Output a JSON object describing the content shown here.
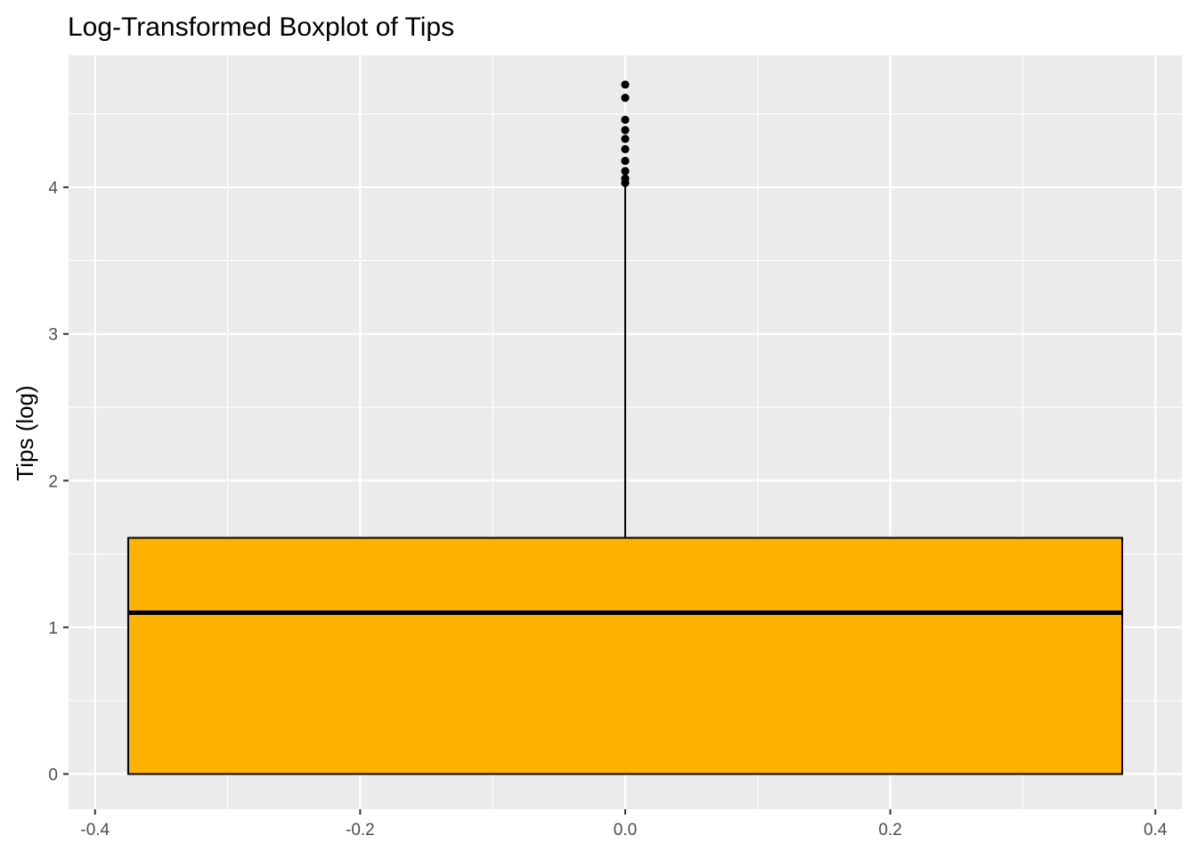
{
  "chart_data": {
    "type": "boxplot",
    "title": "Log-Transformed Boxplot of Tips",
    "xlabel": "",
    "ylabel": "Tips (log)",
    "xlim": [
      -0.42,
      0.42
    ],
    "ylim": [
      -0.24,
      4.9
    ],
    "x_ticks": [
      -0.4,
      -0.2,
      0.0,
      0.2,
      0.4
    ],
    "x_tick_labels": [
      "-0.4",
      "-0.2",
      "0.0",
      "0.2",
      "0.4"
    ],
    "y_ticks": [
      0,
      1,
      2,
      3,
      4
    ],
    "y_tick_labels": [
      "0",
      "1",
      "2",
      "3",
      "4"
    ],
    "grid": true,
    "legend": "none",
    "panel_background": "#ebebeb",
    "grid_color": "#ffffff",
    "box_fill": "#ffb300",
    "box_outline": "#000000",
    "box": {
      "x_center": 0.0,
      "x_min": -0.375,
      "x_max": 0.375,
      "q1": 0.0,
      "median": 1.1,
      "q3": 1.61,
      "whisker_low": 0.0,
      "whisker_high": 4.02
    },
    "outliers": [
      4.03,
      4.06,
      4.11,
      4.18,
      4.26,
      4.33,
      4.39,
      4.46,
      4.61,
      4.7
    ]
  }
}
